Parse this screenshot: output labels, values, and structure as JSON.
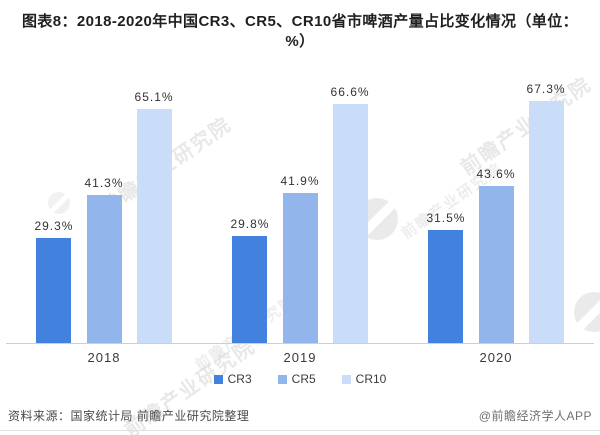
{
  "title": "图表8：2018-2020年中国CR3、CR5、CR10省市啤酒产量占比变化情况（单位：%）",
  "chart_data": {
    "type": "bar",
    "title": "图表8：2018-2020年中国CR3、CR5、CR10省市啤酒产量占比变化情况（单位：%）",
    "categories": [
      "2018",
      "2019",
      "2020"
    ],
    "series": [
      {
        "name": "CR3",
        "color": "#4282DE",
        "values": [
          29.3,
          29.8,
          31.5
        ]
      },
      {
        "name": "CR5",
        "color": "#92B6EC",
        "values": [
          41.3,
          41.9,
          43.6
        ]
      },
      {
        "name": "CR10",
        "color": "#C9DDF8",
        "values": [
          65.1,
          66.6,
          67.3
        ]
      }
    ],
    "value_suffix": "%",
    "xlabel": "",
    "ylabel": "",
    "ylim": [
      0,
      76
    ],
    "grid": false,
    "legend_position": "bottom"
  },
  "footer": {
    "source": "资料来源：国家统计局 前瞻产业研究院整理",
    "credit": "@前瞻经济学人APP"
  },
  "watermark": {
    "text": "前瞻产业研究院"
  }
}
